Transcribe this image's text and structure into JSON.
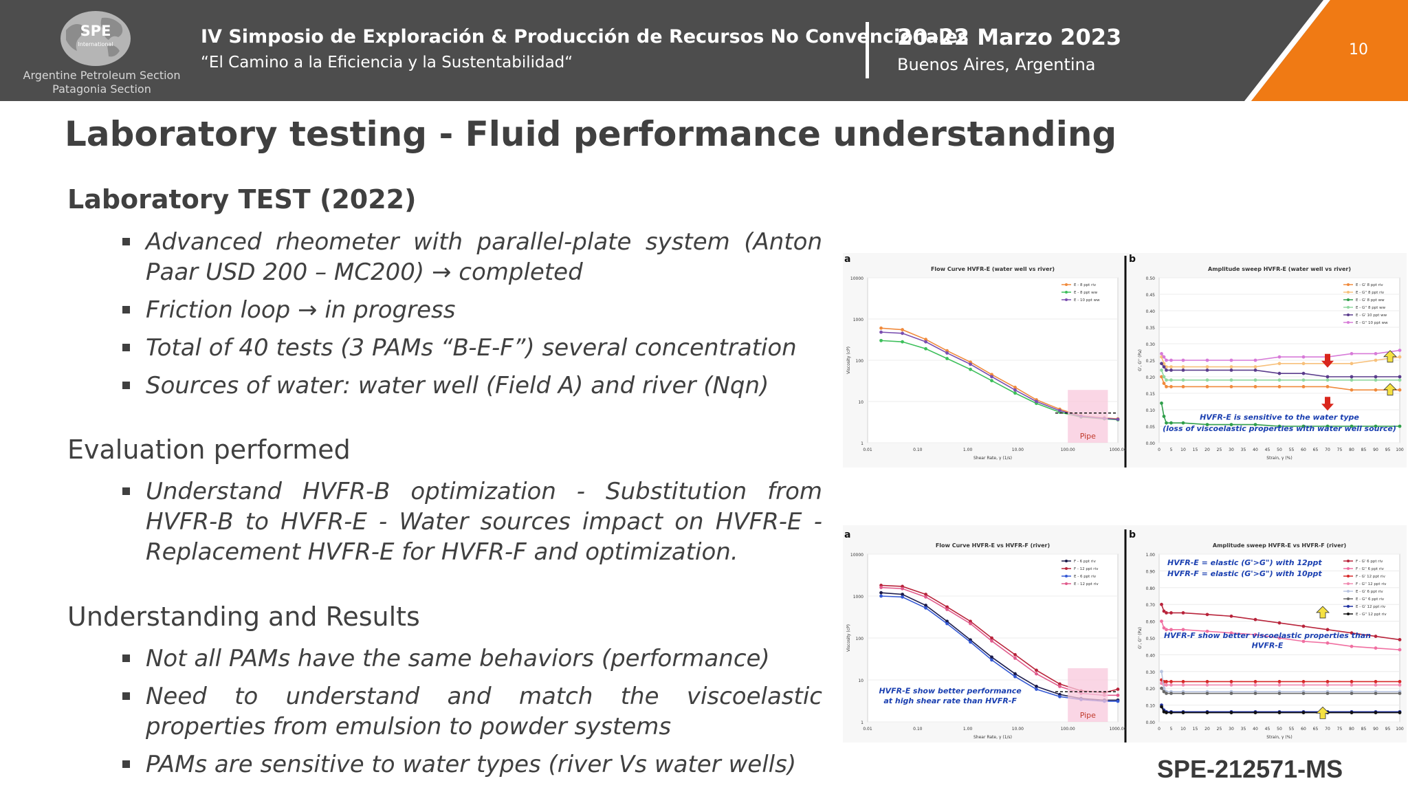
{
  "header": {
    "logo_mark": "SPE",
    "logo_mark_sub": "International",
    "logo_line1": "Argentine Petroleum Section",
    "logo_line2": "Patagonia Section",
    "conference_title": "IV Simposio de Exploración & Producción de Recursos No Convencionales",
    "conference_subtitle": "“El Camino a la Eficiencia y la Sustentabilidad“",
    "dates": "20–22 Marzo 2023",
    "place": "Buenos Aires, Argentina",
    "page_number": "10",
    "colors": {
      "bar": "#4d4d4d",
      "accent": "#f07a14"
    }
  },
  "title": "Laboratory testing - Fluid performance understanding",
  "section1": {
    "heading": "Laboratory TEST (2022)",
    "bullets": [
      "Advanced rheometer with parallel-plate system (Anton Paar USD 200 – MC200) → completed",
      "Friction loop → in progress",
      "Total of 40 tests (3 PAMs “B-E-F”) several concentration",
      "Sources of water: water well (Field A) and river (Nqn)"
    ]
  },
  "section2": {
    "heading": "Evaluation performed",
    "bullets": [
      "Understand HVFR-B optimization - Substitution from HVFR-B to HVFR-E - Water sources impact on HVFR-E - Replacement HVFR-E for HVFR-F and optimization."
    ]
  },
  "section3": {
    "heading": "Understanding and Results",
    "bullets": [
      "Not all PAMs have the same behaviors (performance)",
      "Need to understand and match the viscoelastic properties from emulsion to powder systems",
      "PAMs are sensitive to water types (river Vs water wells)"
    ]
  },
  "paper_id": "SPE-212571-MS",
  "charts": {
    "top": {
      "left_panel_letter": "a",
      "right_panel_letter": "b",
      "left_title": "Flow Curve    HVFR-E  (water well vs river)",
      "left_ylabel": "Viscosity (cP)",
      "left_xlabel": "Shear Rate, γ (1/s)",
      "left_legend": [
        "E - 8 ppt  riv",
        "E - 8 ppt  ww",
        "E - 10 ppt  ww"
      ],
      "left_yticks": [
        "10000",
        "1000",
        "100",
        "10",
        "1"
      ],
      "left_xticks": [
        "0.01",
        "0.10",
        "1.00",
        "10.00",
        "100.00",
        "1000.00"
      ],
      "left_pipe": "Pipe",
      "right_title": "Amplitude sweep    HVFR-E  (water well vs river)",
      "right_ylabel": "G', G'' (Pa)",
      "right_xlabel": "Strain, γ (%)",
      "right_legend": [
        "E - G' 8 ppt  riv",
        "E - G'' 8 ppt  riv",
        "E - G' 8 ppt  ww",
        "E - G'' 8 ppt  ww",
        "E - G' 10 ppt  ww",
        "E - G'' 10 ppt  ww"
      ],
      "right_yticks": [
        "0.50",
        "0.45",
        "0.40",
        "0.35",
        "0.30",
        "0.25",
        "0.20",
        "0.15",
        "0.10",
        "0.05",
        "0.00"
      ],
      "right_xticks": [
        "0",
        "5",
        "10",
        "15",
        "20",
        "25",
        "30",
        "35",
        "40",
        "45",
        "50",
        "55",
        "60",
        "65",
        "70",
        "75",
        "80",
        "85",
        "90",
        "95",
        "100"
      ],
      "right_note1": "HVFR-E is sensitive to the water type",
      "right_note2": "(loss of viscoelastic properties with water well source)"
    },
    "bottom": {
      "left_panel_letter": "a",
      "right_panel_letter": "b",
      "left_title": "Flow Curve    HVFR-E vs HVFR-F  (river)",
      "left_ylabel": "Viscosity (cP)",
      "left_xlabel": "Shear Rate, γ (1/s)",
      "left_legend": [
        "F - 6 ppt  riv",
        "F - 12 ppt  riv",
        "E - 6 ppt  riv",
        "E - 12 ppt  riv"
      ],
      "left_yticks": [
        "10000",
        "1000",
        "100",
        "10",
        "1"
      ],
      "left_xticks": [
        "0.01",
        "0.10",
        "1.00",
        "10.00",
        "100.00",
        "1000.00"
      ],
      "left_pipe": "Pipe",
      "left_note1": "HVFR-E show better performance",
      "left_note2": "at high shear rate than HVFR-F",
      "right_title": "Amplitude sweep    HVFR-E vs HVFR-F  (river)",
      "right_ylabel": "G', G'' (Pa)",
      "right_xlabel": "Strain, γ (%)",
      "right_legend": [
        "F - G' 6 ppt  riv",
        "F - G'' 6 ppt  riv",
        "F - G' 12 ppt  riv",
        "F - G'' 12 ppt  riv",
        "E - G' 6 ppt  riv",
        "E - G'' 6 ppt  riv",
        "E - G' 12 ppt  riv",
        "E - G'' 12 ppt  riv"
      ],
      "right_yticks": [
        "1.00",
        "0.90",
        "0.80",
        "0.70",
        "0.60",
        "0.50",
        "0.40",
        "0.30",
        "0.20",
        "0.10",
        "0.00"
      ],
      "right_xticks": [
        "0",
        "5",
        "10",
        "15",
        "20",
        "25",
        "30",
        "35",
        "40",
        "45",
        "50",
        "55",
        "60",
        "65",
        "70",
        "75",
        "80",
        "85",
        "90",
        "95",
        "100"
      ],
      "right_note1": "HVFR-E = elastic (G'>G\") with 12ppt",
      "right_note2": "HVFR-F = elastic (G'>G\") with 10ppt",
      "right_note3": "HVFR-F show better viscoelastic properties than",
      "right_note4": "HVFR-E"
    }
  },
  "chart_data": [
    {
      "type": "line",
      "title": "Flow Curve    HVFR-E  (water well vs river)",
      "xlabel": "Shear Rate, γ (1/s)",
      "ylabel": "Viscosity (cP)",
      "x_scale": "log",
      "y_scale": "log",
      "xlim": [
        0.005,
        2000
      ],
      "ylim": [
        1,
        10000
      ],
      "x": [
        0.01,
        0.03,
        0.1,
        0.3,
        1,
        3,
        10,
        30,
        100,
        300,
        1000,
        2000
      ],
      "series": [
        {
          "name": "E - 8 ppt  riv",
          "color": "#f08a3c",
          "values": [
            600,
            550,
            320,
            170,
            90,
            45,
            22,
            11,
            6.5,
            4.5,
            4,
            3.8
          ]
        },
        {
          "name": "E - 8 ppt  ww",
          "color": "#3cbf5a",
          "values": [
            300,
            280,
            190,
            110,
            60,
            32,
            16,
            9,
            5.5,
            4.2,
            3.8,
            3.6
          ]
        },
        {
          "name": "E - 10 ppt  ww",
          "color": "#7a4fb0",
          "values": [
            480,
            450,
            280,
            150,
            80,
            40,
            19,
            10,
            6,
            4.4,
            3.9,
            3.7
          ]
        }
      ]
    },
    {
      "type": "line",
      "title": "Amplitude sweep    HVFR-E  (water well vs river)",
      "xlabel": "Strain, γ (%)",
      "ylabel": "G', G'' (Pa)",
      "xlim": [
        0,
        100
      ],
      "ylim": [
        0,
        0.5
      ],
      "x": [
        1,
        2,
        3,
        5,
        10,
        20,
        30,
        40,
        50,
        60,
        70,
        80,
        90,
        100
      ],
      "series": [
        {
          "name": "E - G' 8 ppt  riv",
          "color": "#f08a3c",
          "values": [
            0.2,
            0.18,
            0.17,
            0.17,
            0.17,
            0.17,
            0.17,
            0.17,
            0.17,
            0.17,
            0.17,
            0.16,
            0.16,
            0.16
          ]
        },
        {
          "name": "E - G'' 8 ppt  riv",
          "color": "#f7c07a",
          "values": [
            0.26,
            0.24,
            0.23,
            0.23,
            0.23,
            0.23,
            0.23,
            0.23,
            0.24,
            0.24,
            0.24,
            0.24,
            0.25,
            0.26
          ]
        },
        {
          "name": "E - G' 8 ppt  ww",
          "color": "#2f9e4a",
          "values": [
            0.12,
            0.08,
            0.06,
            0.06,
            0.06,
            0.055,
            0.055,
            0.055,
            0.05,
            0.05,
            0.05,
            0.05,
            0.05,
            0.05
          ]
        },
        {
          "name": "E - G'' 8 ppt  ww",
          "color": "#8fd89f",
          "values": [
            0.22,
            0.2,
            0.19,
            0.19,
            0.19,
            0.19,
            0.19,
            0.19,
            0.19,
            0.19,
            0.19,
            0.19,
            0.19,
            0.19
          ]
        },
        {
          "name": "E - G' 10 ppt  ww",
          "color": "#5a3c8c",
          "values": [
            0.24,
            0.23,
            0.22,
            0.22,
            0.22,
            0.22,
            0.22,
            0.22,
            0.21,
            0.21,
            0.2,
            0.2,
            0.2,
            0.2
          ]
        },
        {
          "name": "E - G'' 10 ppt  ww",
          "color": "#d77ad8",
          "values": [
            0.27,
            0.26,
            0.25,
            0.25,
            0.25,
            0.25,
            0.25,
            0.25,
            0.26,
            0.26,
            0.26,
            0.27,
            0.27,
            0.28
          ]
        }
      ]
    },
    {
      "type": "line",
      "title": "Flow Curve    HVFR-E vs HVFR-F  (river)",
      "xlabel": "Shear Rate, γ (1/s)",
      "ylabel": "Viscosity (cP)",
      "x_scale": "log",
      "y_scale": "log",
      "xlim": [
        0.005,
        2000
      ],
      "ylim": [
        1,
        10000
      ],
      "x": [
        0.01,
        0.03,
        0.1,
        0.3,
        1,
        3,
        10,
        30,
        100,
        300,
        1000,
        2000
      ],
      "series": [
        {
          "name": "F - 6 ppt  riv",
          "color": "#1a1a4a",
          "values": [
            1200,
            1100,
            600,
            250,
            90,
            35,
            14,
            7,
            4.5,
            3.6,
            3.3,
            3.3
          ]
        },
        {
          "name": "F - 12 ppt  riv",
          "color": "#b8233a",
          "values": [
            1800,
            1700,
            1100,
            550,
            250,
            100,
            40,
            17,
            8,
            5.5,
            5,
            6
          ]
        },
        {
          "name": "E - 6 ppt  riv",
          "color": "#3358d4",
          "values": [
            1000,
            950,
            520,
            220,
            80,
            30,
            12,
            6,
            4,
            3.4,
            3.1,
            3.1
          ]
        },
        {
          "name": "E - 12 ppt  riv",
          "color": "#e05a8c",
          "values": [
            1600,
            1500,
            950,
            480,
            220,
            85,
            33,
            14,
            7,
            4.8,
            4.3,
            4.3
          ]
        }
      ]
    },
    {
      "type": "line",
      "title": "Amplitude sweep    HVFR-E vs HVFR-F  (river)",
      "xlabel": "Strain, γ (%)",
      "ylabel": "G', G'' (Pa)",
      "xlim": [
        0,
        100
      ],
      "ylim": [
        0,
        1
      ],
      "x": [
        1,
        2,
        3,
        5,
        10,
        20,
        30,
        40,
        50,
        60,
        70,
        80,
        90,
        100
      ],
      "series": [
        {
          "name": "F - G' 12 ppt  riv",
          "color": "#b8233a",
          "values": [
            0.7,
            0.66,
            0.65,
            0.65,
            0.65,
            0.64,
            0.63,
            0.61,
            0.59,
            0.57,
            0.55,
            0.53,
            0.51,
            0.49
          ]
        },
        {
          "name": "F - G'' 12 ppt  riv",
          "color": "#f06ea0",
          "values": [
            0.6,
            0.56,
            0.55,
            0.55,
            0.55,
            0.54,
            0.53,
            0.52,
            0.5,
            0.48,
            0.47,
            0.45,
            0.44,
            0.43
          ]
        },
        {
          "name": "F - G' 6 ppt  riv",
          "color": "#d62828",
          "values": [
            0.25,
            0.24,
            0.24,
            0.24,
            0.24,
            0.24,
            0.24,
            0.24,
            0.24,
            0.24,
            0.24,
            0.24,
            0.24,
            0.24
          ]
        },
        {
          "name": "E - G' 12 ppt  riv",
          "color": "#f08ab0",
          "values": [
            0.23,
            0.22,
            0.22,
            0.22,
            0.22,
            0.22,
            0.22,
            0.22,
            0.22,
            0.22,
            0.22,
            0.22,
            0.22,
            0.22
          ]
        },
        {
          "name": "E - G'' 6 ppt  riv",
          "color": "#b8c4e0",
          "values": [
            0.3,
            0.2,
            0.18,
            0.18,
            0.18,
            0.18,
            0.18,
            0.18,
            0.18,
            0.18,
            0.18,
            0.18,
            0.18,
            0.18
          ]
        },
        {
          "name": "F - G'' 6 ppt  riv",
          "color": "#6a6a6a",
          "values": [
            0.2,
            0.18,
            0.17,
            0.17,
            0.17,
            0.17,
            0.17,
            0.17,
            0.17,
            0.17,
            0.17,
            0.17,
            0.17,
            0.17
          ]
        },
        {
          "name": "E - G' 6 ppt  riv",
          "color": "#1e2fa0",
          "values": [
            0.1,
            0.07,
            0.06,
            0.06,
            0.06,
            0.06,
            0.06,
            0.06,
            0.06,
            0.06,
            0.06,
            0.06,
            0.06,
            0.06
          ]
        },
        {
          "name": "E - G'' 12 ppt  riv",
          "color": "#111111",
          "values": [
            0.09,
            0.06,
            0.055,
            0.055,
            0.055,
            0.055,
            0.055,
            0.055,
            0.055,
            0.055,
            0.055,
            0.055,
            0.055,
            0.055
          ]
        }
      ]
    }
  ]
}
